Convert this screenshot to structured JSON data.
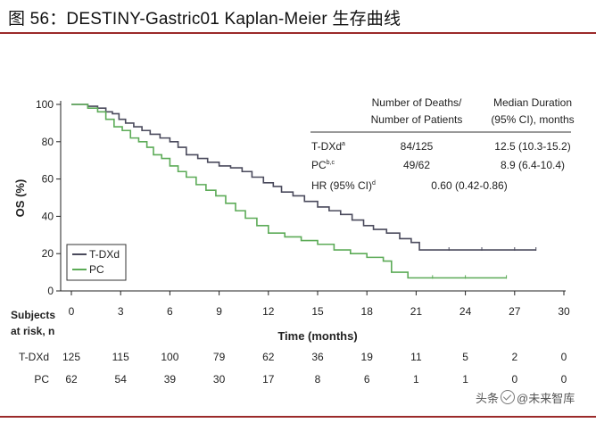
{
  "figure_title": "图 56：DESTINY-Gastric01 Kaplan-Meier 生存曲线",
  "colors": {
    "tdxd": "#4a4a5c",
    "pc": "#5cab57",
    "title_rule": "#9b2a2a"
  },
  "stats_table": {
    "col1_header_line1": "Number of Deaths/",
    "col1_header_line2": "Number of Patients",
    "col2_header_line1": "Median Duration",
    "col2_header_line2": "(95% CI), months",
    "rows": [
      {
        "label": "T-DXd",
        "sup": "a",
        "deaths": "84/125",
        "median": "12.5 (10.3-15.2)"
      },
      {
        "label": "PC",
        "sup": "b,c",
        "deaths": "49/62",
        "median": "8.9 (6.4-10.4)"
      }
    ],
    "hr_label": "HR (95% CI)",
    "hr_sup": "d",
    "hr_value": "0.60 (0.42-0.86)"
  },
  "at_risk": {
    "label_line1": "Subjects",
    "label_line2": "at risk, n",
    "rows": [
      {
        "name": "T-DXd",
        "values": [
          "125",
          "115",
          "100",
          "79",
          "62",
          "36",
          "19",
          "11",
          "5",
          "2",
          "0"
        ]
      },
      {
        "name": "PC",
        "values": [
          "62",
          "54",
          "39",
          "30",
          "17",
          "8",
          "6",
          "1",
          "1",
          "0",
          "0"
        ]
      }
    ]
  },
  "watermark": {
    "prefix": "头条",
    "suffix": "@未来智库"
  },
  "chart_data": {
    "type": "line",
    "title": "",
    "xlabel": "Time (months)",
    "ylabel": "OS (%)",
    "xlim": [
      0,
      30
    ],
    "ylim": [
      0,
      100
    ],
    "x_ticks": [
      0,
      3,
      6,
      9,
      12,
      15,
      18,
      21,
      24,
      27,
      30
    ],
    "y_ticks": [
      0,
      20,
      40,
      60,
      80,
      100
    ],
    "legend": {
      "position": "bottom-left",
      "entries": [
        "T-DXd",
        "PC"
      ]
    },
    "series": [
      {
        "name": "T-DXd",
        "x": [
          0,
          1.0,
          1.6,
          2.1,
          2.5,
          2.9,
          3.3,
          3.8,
          4.3,
          4.8,
          5.4,
          6.0,
          6.5,
          7.0,
          7.7,
          8.3,
          9.0,
          9.7,
          10.4,
          11.0,
          11.7,
          12.3,
          12.8,
          13.5,
          14.2,
          15.0,
          15.7,
          16.4,
          17.1,
          17.8,
          18.4,
          19.2,
          20.0,
          20.7,
          21.2,
          23.0,
          25.0,
          27.0,
          28.3
        ],
        "y": [
          100,
          99,
          98,
          96,
          95,
          92,
          90,
          88,
          86,
          84,
          82,
          80,
          77,
          73,
          71,
          69,
          67,
          66,
          64,
          61,
          58,
          56,
          53,
          51,
          48,
          45,
          43,
          41,
          38,
          35,
          33,
          31,
          28,
          26,
          22,
          22,
          22,
          22,
          22
        ]
      },
      {
        "name": "PC",
        "x": [
          0,
          1.0,
          1.6,
          2.1,
          2.6,
          3.1,
          3.6,
          4.1,
          4.6,
          5.0,
          5.5,
          6.0,
          6.5,
          7.0,
          7.6,
          8.2,
          8.8,
          9.4,
          10.0,
          10.6,
          11.3,
          12.0,
          13.0,
          14.0,
          15.0,
          16.0,
          17.0,
          18.0,
          19.0,
          19.5,
          20.5,
          22.0,
          24.0,
          26.5
        ],
        "y": [
          100,
          98,
          96,
          92,
          88,
          86,
          82,
          80,
          77,
          73,
          71,
          67,
          64,
          61,
          57,
          54,
          51,
          47,
          43,
          39,
          35,
          31,
          29,
          27,
          25,
          22,
          20,
          18,
          16,
          10,
          7,
          7,
          7,
          7
        ]
      }
    ]
  }
}
